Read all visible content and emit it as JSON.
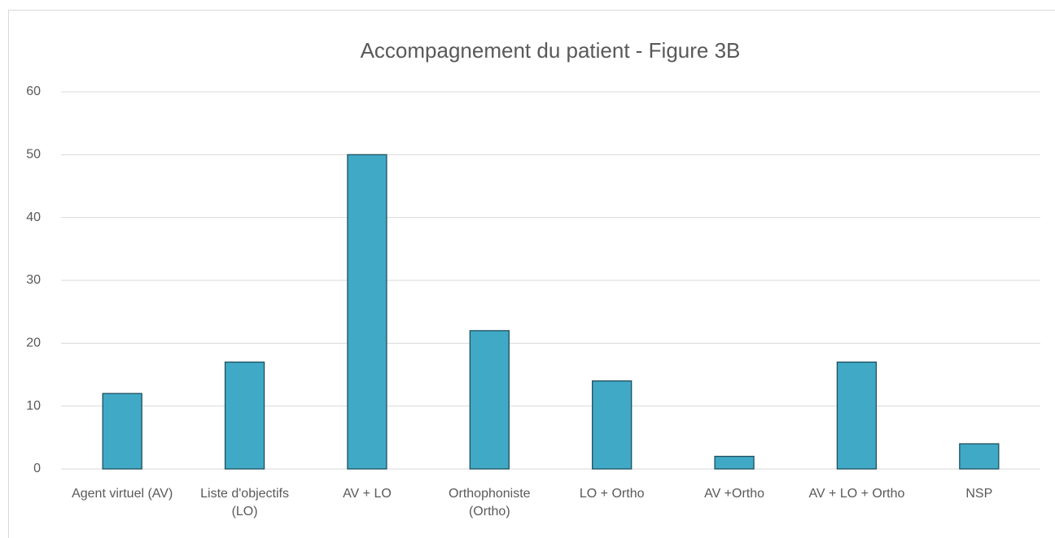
{
  "chart_data": {
    "type": "bar",
    "title": "Accompagnement du patient - Figure 3B",
    "categories": [
      "Agent virtuel (AV)",
      "Liste d'objectifs (LO)",
      "AV + LO",
      "Orthophoniste (Ortho)",
      "LO + Ortho",
      "AV +Ortho",
      "AV + LO + Ortho",
      "NSP"
    ],
    "values": [
      12,
      17,
      50,
      22,
      14,
      2,
      17,
      4
    ],
    "color": "#40a9c6",
    "ylim": [
      0,
      60
    ],
    "yticks": [
      0,
      10,
      20,
      30,
      40,
      50,
      60
    ],
    "grid": true
  }
}
